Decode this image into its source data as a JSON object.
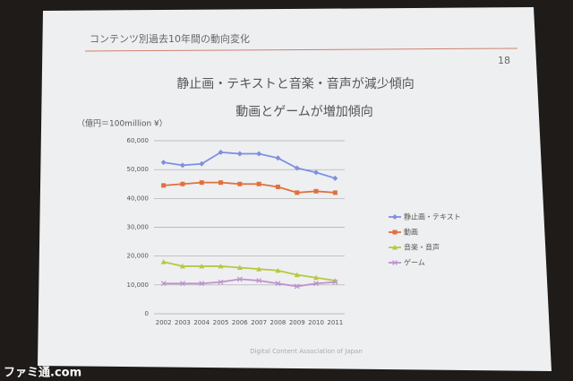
{
  "header": {
    "title": "コンテンツ別過去10年間の動向変化",
    "page": "18"
  },
  "chart_data": {
    "type": "line",
    "title": "静止画・テキストと音楽・音声が減少傾向",
    "subtitle": "動画とゲームが増加傾向",
    "unit": "（億円＝100million ¥）",
    "categories": [
      "2002",
      "2003",
      "2004",
      "2005",
      "2006",
      "2007",
      "2008",
      "2009",
      "2010",
      "2011"
    ],
    "series": [
      {
        "name": "静止画・テキスト",
        "color": "#7f8fe0",
        "values": [
          52500,
          51500,
          52000,
          56000,
          55500,
          55500,
          54000,
          50500,
          49000,
          47000
        ]
      },
      {
        "name": "動画",
        "color": "#e07040",
        "values": [
          44500,
          45000,
          45500,
          45500,
          45000,
          45000,
          44000,
          42000,
          42500,
          42000
        ]
      },
      {
        "name": "音楽・音声",
        "color": "#b8c840",
        "values": [
          18000,
          16500,
          16500,
          16500,
          16000,
          15500,
          15000,
          13500,
          12500,
          11500
        ]
      },
      {
        "name": "ゲーム",
        "color": "#c090d0",
        "values": [
          10500,
          10500,
          10500,
          11000,
          12000,
          11500,
          10500,
          9500,
          10500,
          11000
        ]
      }
    ],
    "ylim": [
      0,
      60000
    ],
    "yticks": [
      0,
      {
        "value": 10000,
        "label": "10,000"
      },
      {
        "value": 20000,
        "label": "20,000"
      },
      {
        "value": 30000,
        "label": "30,000"
      },
      {
        "value": 40000,
        "label": "40,000"
      },
      {
        "value": 50000,
        "label": "50,000"
      },
      {
        "value": 60000,
        "label": "60,000"
      }
    ],
    "grid": true,
    "legend": "right"
  },
  "footer": "Digital Content Association of Japan",
  "watermark": "ファミ通.com"
}
